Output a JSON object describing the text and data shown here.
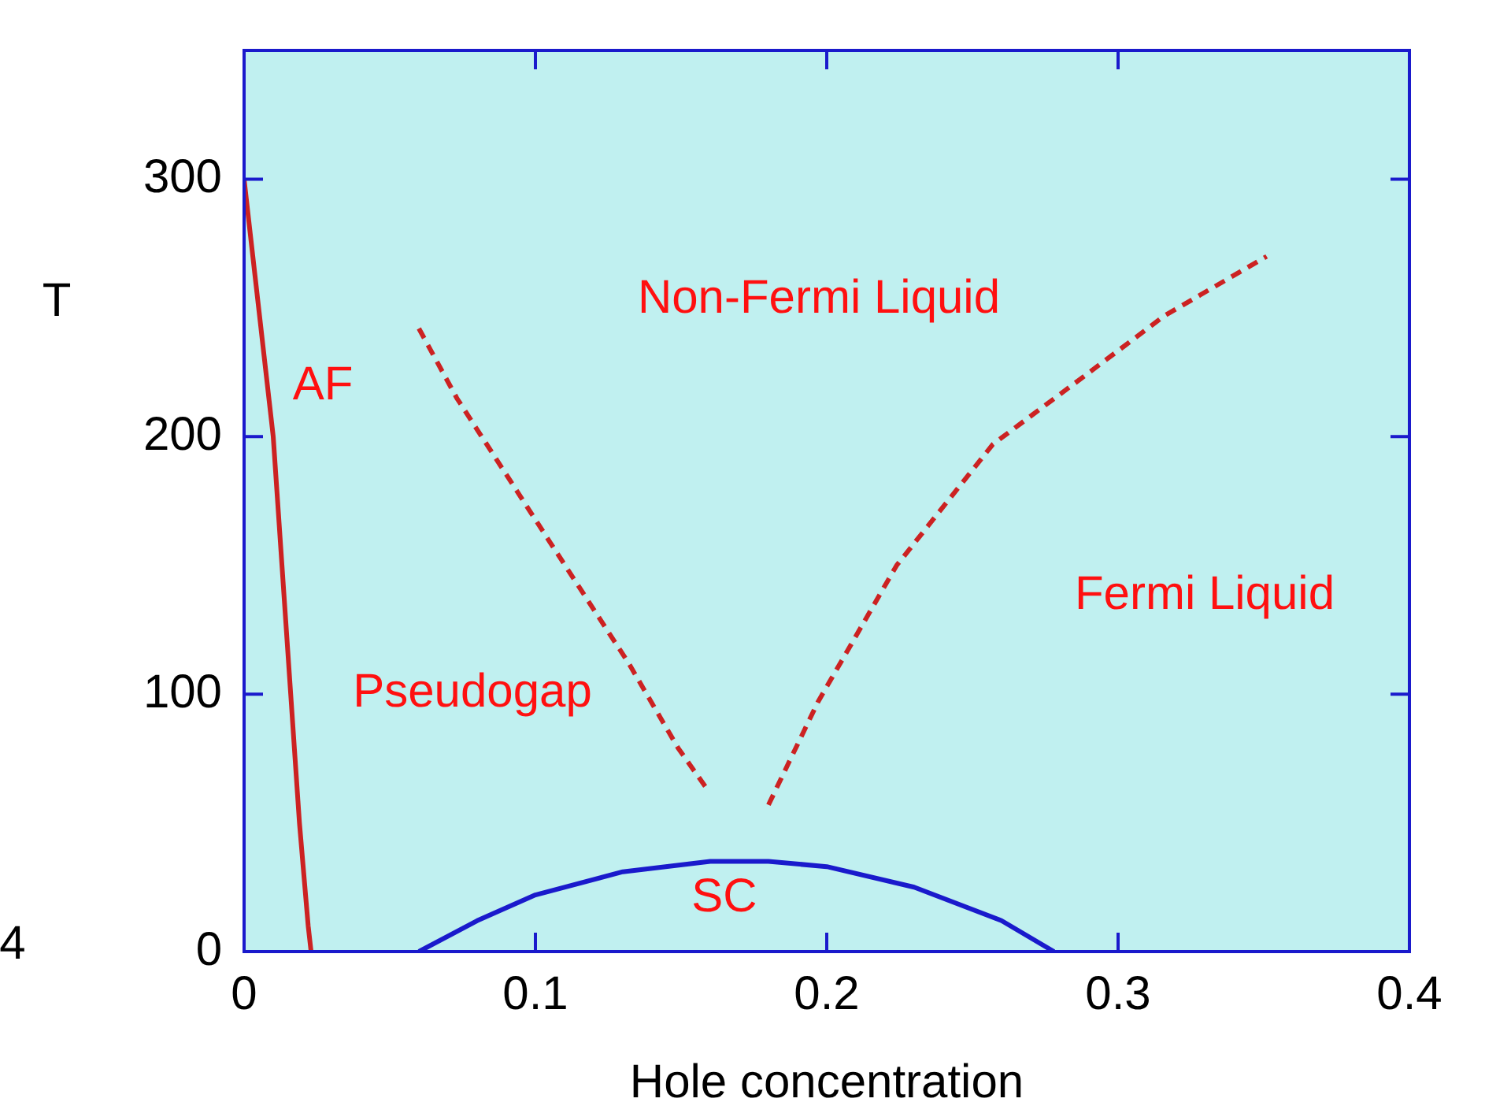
{
  "chart_data": {
    "type": "line",
    "xlabel": "Hole concentration",
    "ylabel": "T",
    "xlim": [
      0,
      0.4
    ],
    "ylim": [
      0,
      350
    ],
    "xticks": [
      0,
      0.1,
      0.2,
      0.3,
      0.4
    ],
    "yticks": [
      0,
      100,
      200,
      300
    ],
    "grid": false,
    "legend": false,
    "marker": "none",
    "series": [
      {
        "color": "#cc2222",
        "line_style": "solid",
        "x": [
          0,
          0.002,
          0.005,
          0.01,
          0.013,
          0.016,
          0.019,
          0.022,
          0.023
        ],
        "values": [
          300,
          280,
          250,
          200,
          150,
          100,
          50,
          10,
          0
        ]
      },
      {
        "color": "#cc2222",
        "line_style": "dashed",
        "x": [
          0.06,
          0.073,
          0.105,
          0.132,
          0.149,
          0.159
        ],
        "values": [
          242,
          215,
          159,
          112,
          79,
          63
        ]
      },
      {
        "color": "#cc2222",
        "line_style": "dashed",
        "x": [
          0.18,
          0.197,
          0.224,
          0.257,
          0.289,
          0.316,
          0.351
        ],
        "values": [
          57,
          97,
          150,
          197,
          224,
          247,
          270
        ]
      },
      {
        "color": "#1a1acc",
        "line_style": "solid",
        "x": [
          0.06,
          0.08,
          0.1,
          0.13,
          0.16,
          0.18,
          0.2,
          0.23,
          0.26,
          0.278
        ],
        "values": [
          0,
          12,
          22,
          31,
          35,
          35,
          33,
          25,
          12,
          0
        ]
      }
    ],
    "annotations": [
      "AF",
      "Non-Fermi Liquid",
      "Fermi Liquid",
      "Pseudogap",
      "SC",
      "4"
    ]
  }
}
